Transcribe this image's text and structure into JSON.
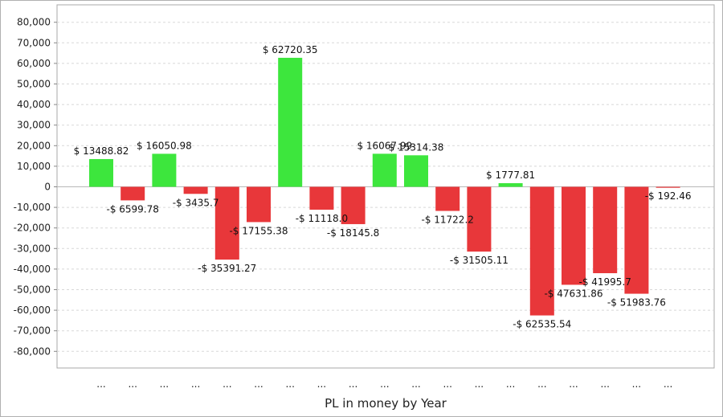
{
  "chart_data": {
    "type": "bar",
    "xlabel": "PL in money by Year",
    "ylabel": "",
    "ylim": [
      -85000,
      85000
    ],
    "yticks": [
      80000,
      70000,
      60000,
      50000,
      40000,
      30000,
      20000,
      10000,
      0,
      -10000,
      -20000,
      -30000,
      -40000,
      -50000,
      -60000,
      -70000,
      -80000
    ],
    "ytick_labels": [
      "80,000",
      "70,000",
      "60,000",
      "50,000",
      "40,000",
      "30,000",
      "20,000",
      "10,000",
      "0",
      "-10,000",
      "-20,000",
      "-30,000",
      "-40,000",
      "-50,000",
      "-60,000",
      "-70,000",
      "-80,000"
    ],
    "grid": true,
    "categories": [
      "...",
      "...",
      "...",
      "...",
      "...",
      "...",
      "...",
      "...",
      "...",
      "...",
      "...",
      "...",
      "...",
      "...",
      "...",
      "...",
      "...",
      "...",
      "..."
    ],
    "values": [
      13488.82,
      -6599.78,
      16050.98,
      -3435.7,
      -35391.27,
      -17155.38,
      62720.35,
      -11118.0,
      -18145.8,
      16067.99,
      15314.38,
      -11722.2,
      -31505.11,
      1777.81,
      -62535.54,
      -47631.86,
      -41995.7,
      -51983.76,
      -192.46
    ],
    "data_labels": [
      "$ 13488.82",
      "-$ 6599.78",
      "$ 16050.98",
      "-$ 3435.7",
      "-$ 35391.27",
      "-$ 17155.38",
      "$ 62720.35",
      "-$ 11118.0",
      "-$ 18145.8",
      "$ 16067.99",
      "$ 15314.38",
      "-$ 11722.2",
      "-$ 31505.11",
      "$ 1777.81",
      "-$ 62535.54",
      "-$ 47631.86",
      "-$ 41995.7",
      "-$ 51983.76",
      "-$ 192.46"
    ],
    "colors": {
      "positive": "#3de63d",
      "negative": "#e8373a"
    }
  }
}
